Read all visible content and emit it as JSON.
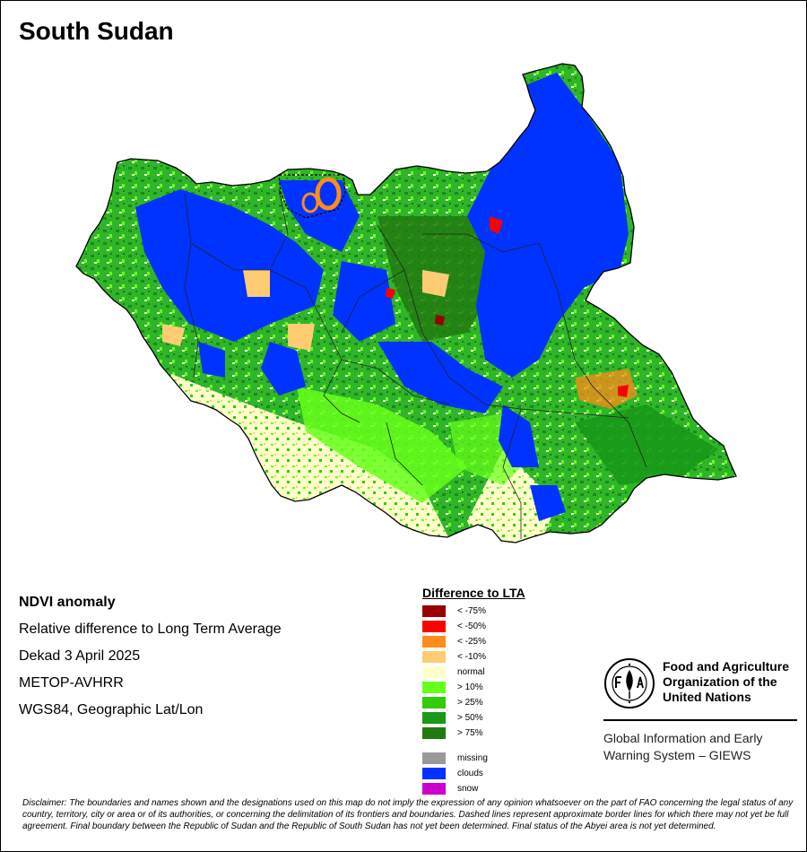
{
  "title": "South Sudan",
  "info": {
    "heading": "NDVI anomaly",
    "lines": [
      "Relative difference to Long Term Average",
      "Dekad 3 April 2025",
      "METOP-AVHRR",
      "WGS84, Geographic Lat/Lon"
    ]
  },
  "legend": {
    "title": "Difference to LTA",
    "classes": [
      {
        "label": "< -75%",
        "color": "#990000"
      },
      {
        "label": "< -50%",
        "color": "#ff0000"
      },
      {
        "label": "< -25%",
        "color": "#ff8c1a"
      },
      {
        "label": "< -10%",
        "color": "#ffcc73"
      },
      {
        "label": "normal",
        "color": "#ffffcc"
      },
      {
        "label": "> 10%",
        "color": "#66ff1a"
      },
      {
        "label": "> 25%",
        "color": "#33cc0a"
      },
      {
        "label": "> 50%",
        "color": "#189918"
      },
      {
        "label": "> 75%",
        "color": "#217a10"
      }
    ],
    "extra": [
      {
        "label": "missing",
        "color": "#999999"
      },
      {
        "label": "clouds",
        "color": "#0033ff"
      },
      {
        "label": "snow",
        "color": "#cc00cc"
      }
    ]
  },
  "org": {
    "name": "Food and Agriculture\nOrganization of the\nUnited Nations",
    "emblem_icon": "fao-emblem-icon",
    "program": "Global Information and Early\nWarning System – GIEWS"
  },
  "disclaimer": "Disclaimer: The boundaries and names shown and the designations used on this map do not imply the expression of any opinion whatsoever on the part of FAO concerning the legal status of any country, territory, city or area or of its authorities, or concerning the delimitation of its frontiers and boundaries. Dashed lines represent approximate border lines for which there may not yet be full agreement.  Final boundary between the Republic of Sudan and the Republic of South Sudan has not yet been determined. Final status of the Abyei area is not yet determined."
}
